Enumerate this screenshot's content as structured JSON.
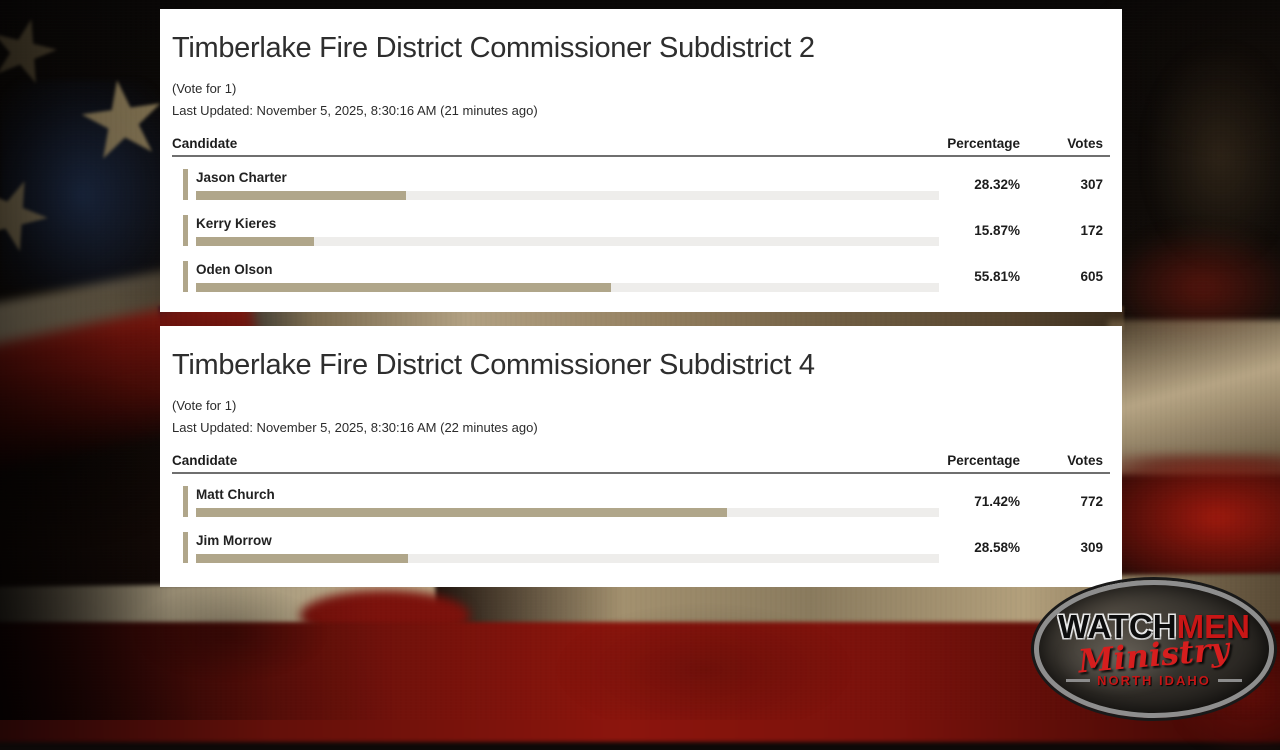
{
  "page": {
    "panel_bg": "#ffffff",
    "accent_color": "#b0a68a",
    "track_color": "#eeedeb",
    "logo_red": "#c81616"
  },
  "contests": [
    {
      "title": "Timberlake Fire District Commissioner Subdistrict 2",
      "vote_for": "(Vote for 1)",
      "last_updated": "Last Updated: November 5, 2025, 8:30:16 AM (21 minutes ago)",
      "columns": {
        "candidate": "Candidate",
        "percentage": "Percentage",
        "votes": "Votes"
      },
      "rows": [
        {
          "name": "Jason Charter",
          "percentage": "28.32%",
          "percent_value": 28.32,
          "votes": "307"
        },
        {
          "name": "Kerry Kieres",
          "percentage": "15.87%",
          "percent_value": 15.87,
          "votes": "172"
        },
        {
          "name": "Oden Olson",
          "percentage": "55.81%",
          "percent_value": 55.81,
          "votes": "605"
        }
      ]
    },
    {
      "title": "Timberlake Fire District Commissioner Subdistrict 4",
      "vote_for": "(Vote for 1)",
      "last_updated": "Last Updated: November 5, 2025, 8:30:16 AM (22 minutes ago)",
      "columns": {
        "candidate": "Candidate",
        "percentage": "Percentage",
        "votes": "Votes"
      },
      "rows": [
        {
          "name": "Matt Church",
          "percentage": "71.42%",
          "percent_value": 71.42,
          "votes": "772"
        },
        {
          "name": "Jim Morrow",
          "percentage": "28.58%",
          "percent_value": 28.58,
          "votes": "309"
        }
      ]
    }
  ],
  "watermark": {
    "word_black": "WATCH",
    "word_red": "MEN",
    "script_word": "Ministry",
    "region": "NORTH IDAHO"
  },
  "background": {
    "star_glyph": "★"
  }
}
